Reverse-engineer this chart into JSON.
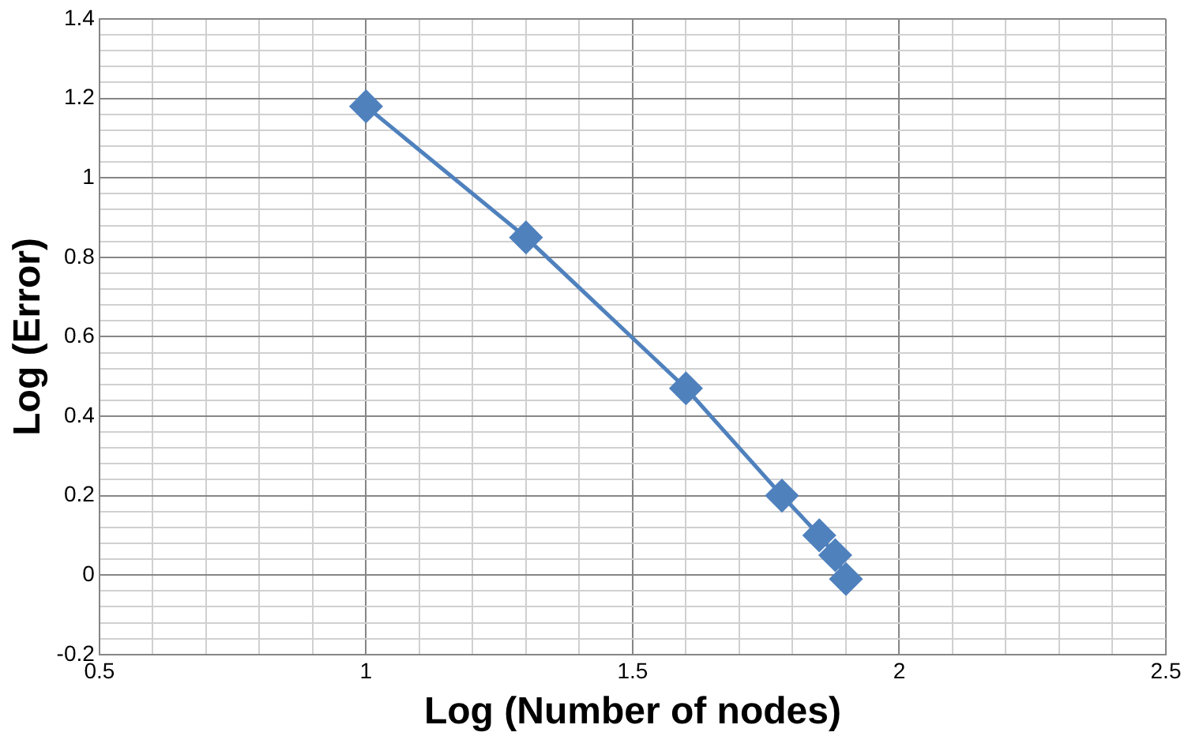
{
  "chart_data": {
    "type": "line",
    "xlabel": "Log (Number of nodes)",
    "ylabel": "Log (Error)",
    "series": [
      {
        "color": "#4f81bd",
        "x": [
          1.0,
          1.3,
          1.6,
          1.78,
          1.85,
          1.88,
          1.9
        ],
        "values": [
          1.18,
          0.85,
          0.47,
          0.2,
          0.1,
          0.05,
          -0.01
        ]
      }
    ],
    "xlim": [
      0.5,
      2.5
    ],
    "xticks": [
      0.5,
      {
        "value": 0.6,
        "label": null
      },
      {
        "value": 0.7,
        "label": null
      },
      {
        "value": 0.8,
        "label": null
      },
      {
        "value": 0.9,
        "label": null
      },
      1,
      {
        "value": 1.1,
        "label": null
      },
      {
        "value": 1.2,
        "label": null
      },
      {
        "value": 1.3,
        "label": null
      },
      {
        "value": 1.4,
        "label": null
      },
      1.5,
      {
        "value": 1.6,
        "label": null
      },
      {
        "value": 1.7,
        "label": null
      },
      {
        "value": 1.8,
        "label": null
      },
      {
        "value": 1.9,
        "label": null
      },
      2,
      {
        "value": 2.1,
        "label": null
      },
      {
        "value": 2.2,
        "label": null
      },
      {
        "value": 2.3,
        "label": null
      },
      {
        "value": 2.4,
        "label": null
      },
      2.5
    ],
    "ylim": [
      -0.2,
      1.4
    ],
    "yticks": [
      -0.2,
      {
        "value": -0.16,
        "label": null
      },
      {
        "value": -0.12,
        "label": null
      },
      {
        "value": -0.08,
        "label": null
      },
      {
        "value": -0.04,
        "label": null
      },
      0,
      {
        "value": 0.04,
        "label": null
      },
      {
        "value": 0.08,
        "label": null
      },
      {
        "value": 0.12,
        "label": null
      },
      {
        "value": 0.16,
        "label": null
      },
      0.2,
      {
        "value": 0.24,
        "label": null
      },
      {
        "value": 0.28,
        "label": null
      },
      {
        "value": 0.32,
        "label": null
      },
      {
        "value": 0.36,
        "label": null
      },
      0.4,
      {
        "value": 0.44,
        "label": null
      },
      {
        "value": 0.48,
        "label": null
      },
      {
        "value": 0.52,
        "label": null
      },
      {
        "value": 0.56,
        "label": null
      },
      0.6,
      {
        "value": 0.64,
        "label": null
      },
      {
        "value": 0.68,
        "label": null
      },
      {
        "value": 0.72,
        "label": null
      },
      {
        "value": 0.76,
        "label": null
      },
      0.8,
      {
        "value": 0.84,
        "label": null
      },
      {
        "value": 0.88,
        "label": null
      },
      {
        "value": 0.92,
        "label": null
      },
      {
        "value": 0.96,
        "label": null
      },
      1,
      {
        "value": 1.04,
        "label": null
      },
      {
        "value": 1.08,
        "label": null
      },
      {
        "value": 1.12,
        "label": null
      },
      {
        "value": 1.16,
        "label": null
      },
      1.2,
      {
        "value": 1.24,
        "label": null
      },
      {
        "value": 1.28,
        "label": null
      },
      {
        "value": 1.32,
        "label": null
      },
      {
        "value": 1.36,
        "label": null
      },
      1.4
    ],
    "grid": true,
    "marker": "diamond",
    "line_style": "solid",
    "legend": false
  }
}
